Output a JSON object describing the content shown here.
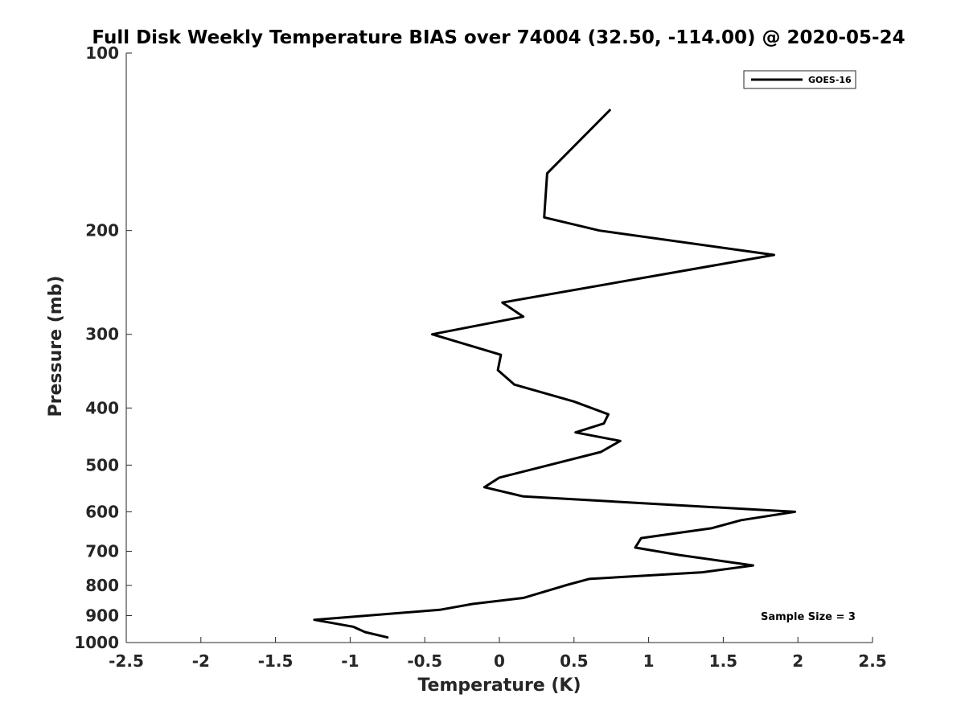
{
  "chart_data": {
    "type": "line",
    "title": "Full Disk Weekly Temperature BIAS over 74004 (32.50, -114.00) @ 2020-05-24",
    "xlabel": "Temperature (K)",
    "ylabel": "Pressure (mb)",
    "xlim": [
      -2.5,
      2.5
    ],
    "ylim": [
      100,
      1000
    ],
    "y_scale": "log",
    "y_reversed": true,
    "grid": false,
    "legend_position": "top-right",
    "x_ticks": [
      "-2.5",
      "-2",
      "-1.5",
      "-1",
      "-0.5",
      "0",
      "0.5",
      "1",
      "1.5",
      "2",
      "2.5"
    ],
    "x_tick_values": [
      -2.5,
      -2,
      -1.5,
      -1,
      -0.5,
      0,
      0.5,
      1,
      1.5,
      2,
      2.5
    ],
    "y_ticks": [
      "100",
      "200",
      "300",
      "400",
      "500",
      "600",
      "700",
      "800",
      "900",
      "1000"
    ],
    "y_tick_values": [
      100,
      200,
      300,
      400,
      500,
      600,
      700,
      800,
      900,
      1000
    ],
    "series": [
      {
        "name": "GOES-16",
        "color": "#000000",
        "points": [
          {
            "x": 0.74,
            "p": 125
          },
          {
            "x": 0.32,
            "p": 160
          },
          {
            "x": 0.3,
            "p": 190
          },
          {
            "x": 0.67,
            "p": 200
          },
          {
            "x": 1.84,
            "p": 220
          },
          {
            "x": 0.02,
            "p": 265
          },
          {
            "x": 0.16,
            "p": 280
          },
          {
            "x": -0.45,
            "p": 300
          },
          {
            "x": 0.01,
            "p": 325
          },
          {
            "x": -0.01,
            "p": 345
          },
          {
            "x": 0.1,
            "p": 365
          },
          {
            "x": 0.5,
            "p": 390
          },
          {
            "x": 0.73,
            "p": 410
          },
          {
            "x": 0.7,
            "p": 425
          },
          {
            "x": 0.51,
            "p": 440
          },
          {
            "x": 0.81,
            "p": 455
          },
          {
            "x": 0.68,
            "p": 475
          },
          {
            "x": 0.0,
            "p": 525
          },
          {
            "x": -0.1,
            "p": 545
          },
          {
            "x": 0.16,
            "p": 565
          },
          {
            "x": 1.98,
            "p": 600
          },
          {
            "x": 1.62,
            "p": 620
          },
          {
            "x": 1.42,
            "p": 640
          },
          {
            "x": 0.95,
            "p": 665
          },
          {
            "x": 0.91,
            "p": 690
          },
          {
            "x": 1.2,
            "p": 710
          },
          {
            "x": 1.7,
            "p": 740
          },
          {
            "x": 1.36,
            "p": 760
          },
          {
            "x": 0.6,
            "p": 780
          },
          {
            "x": 0.44,
            "p": 800
          },
          {
            "x": 0.16,
            "p": 840
          },
          {
            "x": -0.18,
            "p": 860
          },
          {
            "x": -0.4,
            "p": 880
          },
          {
            "x": -1.24,
            "p": 915
          },
          {
            "x": -0.98,
            "p": 940
          },
          {
            "x": -0.9,
            "p": 960
          },
          {
            "x": -0.75,
            "p": 980
          }
        ]
      }
    ],
    "annotations": [
      "Sample Size = 3"
    ]
  }
}
